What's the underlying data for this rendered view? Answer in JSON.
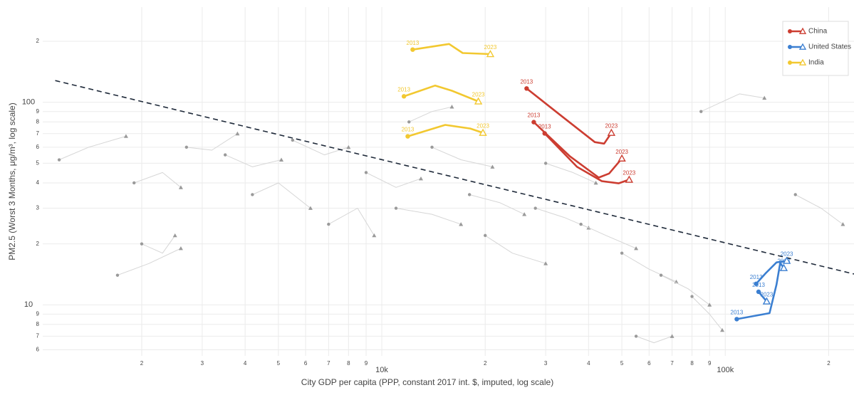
{
  "chart_data": {
    "type": "line",
    "x_label": "City GDP per capita (PPP, constant 2017 int. $, imputed, log scale)",
    "y_label": "PM2.5 (Worst 3 Months, μg/m³, log scale)",
    "log_x": true,
    "log_y": true,
    "grid": true,
    "legend": "top-right",
    "xlim": [
      1030,
      237000
    ],
    "ylim": [
      5.6,
      295
    ],
    "xticks": [
      {
        "value": 2000,
        "label": "2"
      },
      {
        "value": 3000,
        "label": "3"
      },
      {
        "value": 4000,
        "label": "4"
      },
      {
        "value": 5000,
        "label": "5"
      },
      {
        "value": 6000,
        "label": "6"
      },
      {
        "value": 7000,
        "label": "7"
      },
      {
        "value": 8000,
        "label": "8"
      },
      {
        "value": 9000,
        "label": "9"
      },
      {
        "value": 10000,
        "label": "10k"
      },
      {
        "value": 20000,
        "label": "2"
      },
      {
        "value": 30000,
        "label": "3"
      },
      {
        "value": 40000,
        "label": "4"
      },
      {
        "value": 50000,
        "label": "5"
      },
      {
        "value": 60000,
        "label": "6"
      },
      {
        "value": 70000,
        "label": "7"
      },
      {
        "value": 80000,
        "label": "8"
      },
      {
        "value": 90000,
        "label": "9"
      },
      {
        "value": 100000,
        "label": "100k"
      },
      {
        "value": 200000,
        "label": "2"
      }
    ],
    "yticks": [
      6,
      7,
      8,
      9,
      10,
      {
        "value": 20,
        "label": "2"
      },
      {
        "value": 30,
        "label": "3"
      },
      {
        "value": 40,
        "label": "4"
      },
      {
        "value": 50,
        "label": "5"
      },
      {
        "value": 60,
        "label": "6"
      },
      {
        "value": 70,
        "label": "7"
      },
      {
        "value": 80,
        "label": "8"
      },
      {
        "value": 90,
        "label": "9"
      },
      100,
      {
        "value": 200,
        "label": "2"
      }
    ],
    "trend": {
      "x": [
        1120,
        237000
      ],
      "values": [
        128,
        14.2
      ],
      "color": "#1f2a3a",
      "dashed": true
    },
    "background": {
      "color": "#d6d6d6",
      "marker_color": "#9a9a9a",
      "trajectories": [
        {
          "x": [
            1150,
            1400,
            1800
          ],
          "values": [
            52,
            60,
            68
          ]
        },
        {
          "x": [
            1900,
            2300,
            2600
          ],
          "values": [
            40,
            45,
            38
          ]
        },
        {
          "x": [
            2700,
            3200,
            3800
          ],
          "values": [
            60,
            58,
            70
          ]
        },
        {
          "x": [
            3500,
            4200,
            5100
          ],
          "values": [
            55,
            48,
            52
          ]
        },
        {
          "x": [
            4200,
            5000,
            6200
          ],
          "values": [
            35,
            40,
            30
          ]
        },
        {
          "x": [
            5500,
            6800,
            8000
          ],
          "values": [
            65,
            55,
            60
          ]
        },
        {
          "x": [
            7000,
            8500,
            9500
          ],
          "values": [
            25,
            30,
            22
          ]
        },
        {
          "x": [
            9000,
            11000,
            13000
          ],
          "values": [
            45,
            38,
            42
          ]
        },
        {
          "x": [
            11000,
            14000,
            17000
          ],
          "values": [
            30,
            28,
            25
          ]
        },
        {
          "x": [
            14000,
            17000,
            21000
          ],
          "values": [
            60,
            52,
            48
          ]
        },
        {
          "x": [
            18000,
            22000,
            26000
          ],
          "values": [
            35,
            32,
            28
          ]
        },
        {
          "x": [
            20000,
            24000,
            30000
          ],
          "values": [
            22,
            18,
            16
          ]
        },
        {
          "x": [
            28000,
            34000,
            40000
          ],
          "values": [
            30,
            27,
            24
          ]
        },
        {
          "x": [
            38000,
            45000,
            55000
          ],
          "values": [
            25,
            22,
            19
          ]
        },
        {
          "x": [
            50000,
            60000,
            72000
          ],
          "values": [
            18,
            15,
            13
          ]
        },
        {
          "x": [
            65000,
            78000,
            90000
          ],
          "values": [
            14,
            12,
            10
          ]
        },
        {
          "x": [
            80000,
            90000,
            98000
          ],
          "values": [
            11,
            9,
            7.5
          ]
        },
        {
          "x": [
            85000,
            110000,
            130000
          ],
          "values": [
            90,
            110,
            105
          ]
        },
        {
          "x": [
            2000,
            2300,
            2500
          ],
          "values": [
            20,
            18,
            22
          ]
        },
        {
          "x": [
            1700,
            2100,
            2600
          ],
          "values": [
            14,
            16,
            19
          ]
        },
        {
          "x": [
            12000,
            14000,
            16000
          ],
          "values": [
            80,
            90,
            95
          ]
        },
        {
          "x": [
            30000,
            36000,
            42000
          ],
          "values": [
            50,
            45,
            40
          ]
        },
        {
          "x": [
            160000,
            190000,
            220000
          ],
          "values": [
            35,
            30,
            25
          ]
        },
        {
          "x": [
            55000,
            62000,
            70000
          ],
          "values": [
            7,
            6.5,
            7
          ]
        }
      ]
    },
    "series": [
      {
        "name": "China",
        "color": "#cc3d31",
        "trajectories": [
          {
            "x": [
              26400,
              33700,
              41700,
              44400,
              46600
            ],
            "values": [
              117,
              84.4,
              63.6,
              62.5,
              70.7
            ],
            "point_labels": [
              "2013",
              null,
              null,
              null,
              "2023"
            ]
          },
          {
            "x": [
              27700,
              35300,
              42800,
              45900,
              50000
            ],
            "values": [
              79.8,
              54.1,
              42.5,
              44.5,
              52.8
            ],
            "point_labels": [
              "2013",
              null,
              null,
              null,
              "2023"
            ]
          },
          {
            "x": [
              29800,
              37000,
              43700,
              48900,
              52500
            ],
            "values": [
              70.2,
              48,
              40.8,
              39.8,
              41.5
            ],
            "point_labels": [
              "2013",
              null,
              null,
              null,
              "2023"
            ]
          }
        ]
      },
      {
        "name": "United States",
        "color": "#3b7fd1",
        "trajectories": [
          {
            "x": [
              108000,
              134500,
              141000,
              144500,
              148000
            ],
            "values": [
              8.5,
              9.1,
              12.6,
              16.1,
              15.2
            ],
            "point_labels": [
              "2013",
              null,
              null,
              null,
              "2023"
            ]
          },
          {
            "x": [
              123000,
              131000,
              141000,
              151000
            ],
            "values": [
              12.7,
              14.3,
              16.2,
              16.5
            ],
            "point_labels": [
              "2013",
              null,
              null,
              "2023"
            ]
          },
          {
            "x": [
              125000,
              132000
            ],
            "values": [
              11.6,
              10.4
            ],
            "point_labels": [
              "2013",
              "2023"
            ]
          }
        ]
      },
      {
        "name": "India",
        "color": "#f2c830",
        "trajectories": [
          {
            "x": [
              12300,
              15700,
              17200,
              20700
            ],
            "values": [
              182,
              194,
              175,
              173
            ],
            "point_labels": [
              "2013",
              null,
              null,
              "2023"
            ]
          },
          {
            "x": [
              11600,
              14300,
              16000,
              19100
            ],
            "values": [
              107,
              121,
              114,
              101
            ],
            "point_labels": [
              "2013",
              null,
              null,
              "2023"
            ]
          },
          {
            "x": [
              11900,
              15300,
              18100,
              19700
            ],
            "values": [
              67.9,
              77.3,
              74.2,
              70.7
            ],
            "point_labels": [
              "2013",
              null,
              null,
              "2023"
            ]
          }
        ]
      }
    ]
  }
}
